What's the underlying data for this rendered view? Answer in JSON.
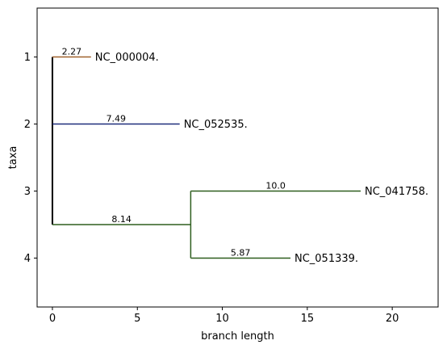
{
  "chart_data": {
    "type": "tree",
    "xlabel": "branch length",
    "ylabel": "taxa",
    "xlim": [
      -0.9,
      22.7
    ],
    "ylim": [
      4.73,
      0.27
    ],
    "xticks": [
      0,
      5,
      10,
      15,
      20
    ],
    "yticks": [
      1,
      2,
      3,
      4
    ],
    "grid": false,
    "leaves": [
      {
        "name": "NC_000004.",
        "y": 1,
        "branch_length": 2.27,
        "color": "#a0622d"
      },
      {
        "name": "NC_052535.",
        "y": 2,
        "branch_length": 7.49,
        "color": "#1f2e7a"
      },
      {
        "name": "NC_041758.",
        "y": 3,
        "branch_length": 10.0,
        "color": "#2e5e1e"
      },
      {
        "name": "NC_051339.",
        "y": 4,
        "branch_length": 5.87,
        "color": "#2e5e1e"
      }
    ],
    "branch_labels": [
      "2.27",
      "7.49",
      "8.14",
      "10.0",
      "5.87"
    ],
    "internal_nodes": [
      {
        "name": "clade-34",
        "x0": 0,
        "y": 3.5,
        "branch_length": 8.14,
        "color": "#2e5e1e",
        "children_y": [
          3,
          4
        ]
      }
    ],
    "root": {
      "x": 0,
      "y_range": [
        1,
        3.5
      ],
      "color": "#000000"
    }
  }
}
